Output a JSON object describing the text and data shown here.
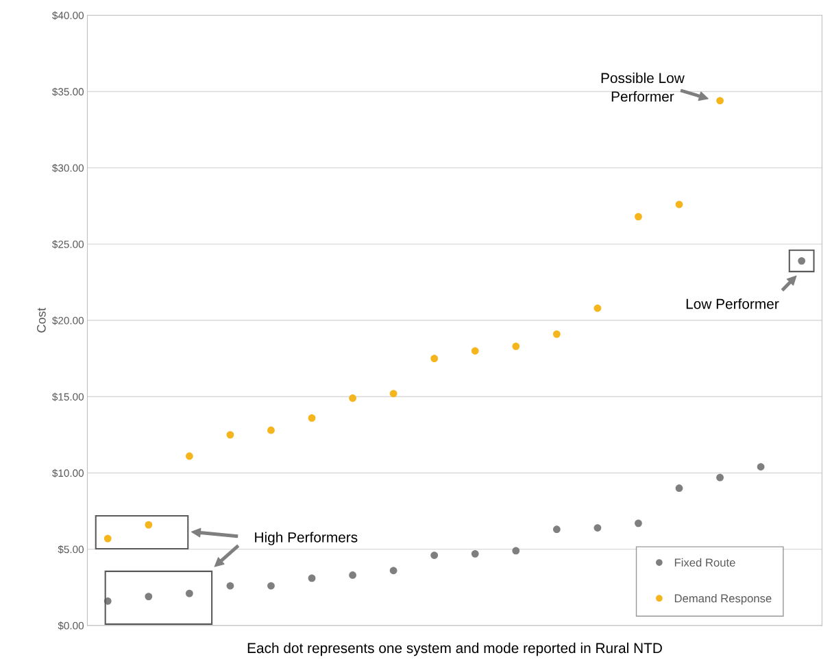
{
  "chart_data": {
    "type": "scatter",
    "xlabel": "Each dot represents one system and mode reported in Rural NTD",
    "ylabel": "Cost",
    "categories": [
      null,
      null,
      null,
      null,
      null,
      null,
      null,
      null,
      null,
      null,
      null,
      null,
      null,
      null,
      null,
      null,
      null,
      null
    ],
    "series": [
      {
        "name": "Fixed Route",
        "color": "#7f7f7f",
        "values": [
          1.6,
          1.9,
          2.1,
          2.6,
          2.6,
          3.1,
          3.3,
          3.6,
          4.6,
          4.7,
          4.9,
          6.3,
          6.4,
          6.7,
          9.0,
          9.7,
          10.4,
          23.9
        ]
      },
      {
        "name": "Demand Response",
        "color": "#f5b51c",
        "values": [
          5.7,
          6.6,
          11.1,
          12.5,
          12.8,
          13.6,
          14.9,
          15.2,
          17.5,
          18.0,
          18.3,
          19.1,
          20.8,
          26.8,
          27.6,
          34.4,
          null,
          null
        ]
      }
    ],
    "ylim": [
      0,
      40
    ],
    "yticks": [
      {
        "value": 0,
        "label": "$0.00"
      },
      {
        "value": 5,
        "label": "$5.00"
      },
      {
        "value": 10,
        "label": "$10.00"
      },
      {
        "value": 15,
        "label": "$15.00"
      },
      {
        "value": 20,
        "label": "$20.00"
      },
      {
        "value": 25,
        "label": "$25.00"
      },
      {
        "value": 30,
        "label": "$30.00"
      },
      {
        "value": 35,
        "label": "$35.00"
      },
      {
        "value": 40,
        "label": "$40.00"
      }
    ],
    "grid": "y",
    "legend": "bottom right",
    "marker": "circle",
    "tick_labels": "y",
    "annotations": [
      "Possible Low\nPerformer",
      "Low Performer",
      "High Performers"
    ]
  }
}
